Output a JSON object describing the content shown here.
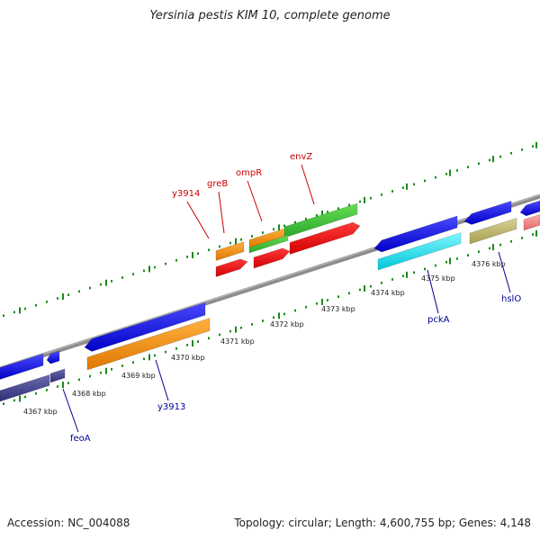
{
  "title": "Yersinia pestis KIM 10, complete genome",
  "accession": "Accession: NC_004088",
  "summary": "Topology: circular; Length: 4,600,755 bp; Genes: 4,148",
  "colors": {
    "backbone": "#8c8c8c",
    "tick": "#1a8a1a",
    "label_red": "#cc0000",
    "label_blue": "#000099"
  },
  "ticks": [
    {
      "label": "4367 kbp"
    },
    {
      "label": "4368 kbp"
    },
    {
      "label": "4369 kbp"
    },
    {
      "label": "4370 kbp"
    },
    {
      "label": "4371 kbp"
    },
    {
      "label": "4372 kbp"
    },
    {
      "label": "4373 kbp"
    },
    {
      "label": "4374 kbp"
    },
    {
      "label": "4375 kbp"
    },
    {
      "label": "4376 kbp"
    }
  ],
  "gene_labels": [
    {
      "name": "y3914",
      "color": "#cc0000"
    },
    {
      "name": "greB",
      "color": "#cc0000"
    },
    {
      "name": "ompR",
      "color": "#cc0000"
    },
    {
      "name": "envZ",
      "color": "#cc0000"
    },
    {
      "name": "feoA",
      "color": "#000099"
    },
    {
      "name": "y3913",
      "color": "#000099"
    },
    {
      "name": "pckA",
      "color": "#000099"
    },
    {
      "name": "hslO",
      "color": "#000099"
    }
  ]
}
